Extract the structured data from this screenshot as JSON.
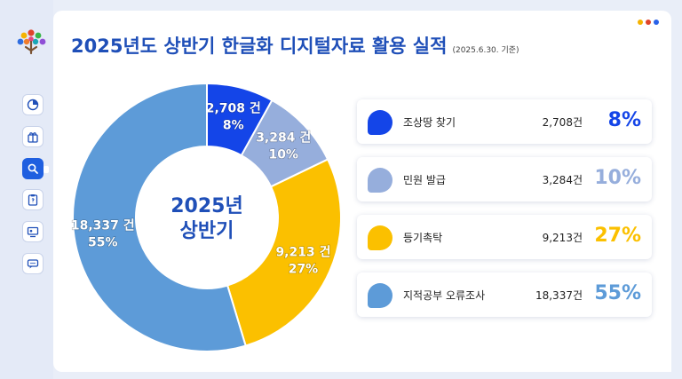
{
  "header": {
    "title": "2025년도 상반기 한글화 디지털자료 활용 실적",
    "date_note": "(2025.6.30. 기준)"
  },
  "sidebar": {
    "items": [
      {
        "icon": "pie-chart-icon"
      },
      {
        "icon": "gift-icon"
      },
      {
        "icon": "search-icon",
        "active": true
      },
      {
        "icon": "clipboard-icon"
      },
      {
        "icon": "monitor-icon"
      },
      {
        "icon": "chat-icon"
      }
    ]
  },
  "window_dots": [
    "#f5b300",
    "#e0442b",
    "#2a62e8"
  ],
  "chart_data": {
    "type": "pie",
    "center_label_line1": "2025년",
    "center_label_line2": "상반기",
    "slices": [
      {
        "name": "조상땅 찾기",
        "value": 2708,
        "count_label": "2,708건",
        "slice_label": "2,708 건",
        "percent": "8%",
        "color": "#1445e8"
      },
      {
        "name": "민원 발급",
        "value": 3284,
        "count_label": "3,284건",
        "slice_label": "3,284 건",
        "percent": "10%",
        "color": "#96aedc"
      },
      {
        "name": "등기촉탁",
        "value": 9213,
        "count_label": "9,213건",
        "slice_label": "9,213 건",
        "percent": "27%",
        "color": "#fbc000"
      },
      {
        "name": "지적공부 오류조사",
        "value": 18337,
        "count_label": "18,337건",
        "slice_label": "18,337 건",
        "percent": "55%",
        "color": "#5d9bd8"
      }
    ],
    "legend_placement": "right"
  }
}
